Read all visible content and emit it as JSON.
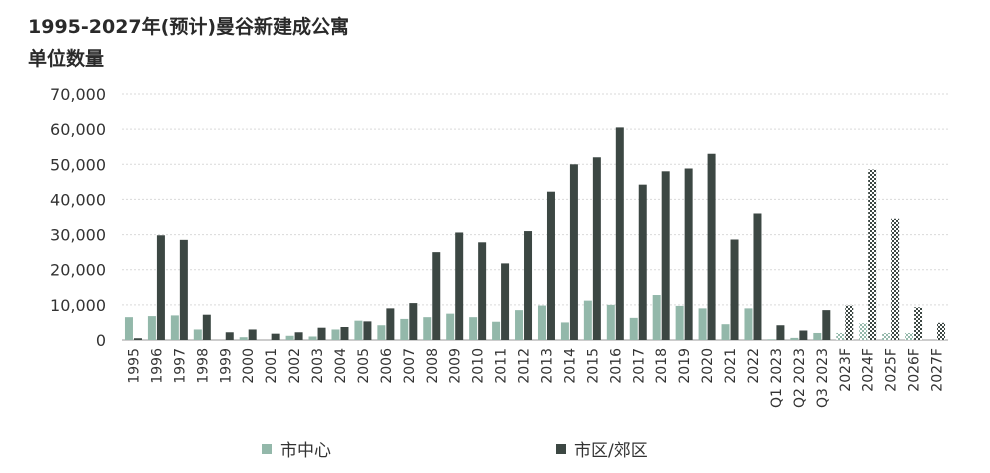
{
  "title": "1995-2027年(预计)曼谷新建成公寓",
  "unit_label": "单位数量",
  "legend": [
    {
      "label": "市中心",
      "color": "#93b8aa"
    },
    {
      "label": "市区/郊区",
      "color": "#3c4743"
    }
  ],
  "chart_data": {
    "type": "bar",
    "title": "1995-2027年(预计)曼谷新建成公寓",
    "ylabel": "单位数量",
    "ylim": [
      0,
      70000
    ],
    "yticks": [
      "0",
      "10,000",
      "20,000",
      "30,000",
      "40,000",
      "50,000",
      "60,000",
      "70,000"
    ],
    "grid": true,
    "legend_position": "bottom",
    "categories": [
      "1995",
      "1996",
      "1997",
      "1998",
      "1999",
      "2000",
      "2001",
      "2002",
      "2003",
      "2004",
      "2005",
      "2006",
      "2007",
      "2008",
      "2009",
      "2010",
      "2011",
      "2012",
      "2013",
      "2014",
      "2015",
      "2016",
      "2017",
      "2018",
      "2019",
      "2020",
      "2021",
      "2022",
      "Q1 2023",
      "Q2 2023",
      "Q3 2023",
      "2023F",
      "2024F",
      "2025F",
      "2026F",
      "2027F"
    ],
    "forecast_categories": [
      "2023F",
      "2024F",
      "2025F",
      "2026F",
      "2027F"
    ],
    "series": [
      {
        "name": "市中心",
        "color": "#93b8aa",
        "values": [
          6500,
          6800,
          7000,
          3000,
          0,
          800,
          0,
          1200,
          1000,
          3000,
          5500,
          4200,
          6000,
          6500,
          7500,
          6500,
          5200,
          8500,
          9800,
          5000,
          11200,
          10000,
          6300,
          12800,
          9700,
          9000,
          4500,
          9000,
          200,
          600,
          2000,
          2000,
          4800,
          2000,
          2000,
          0
        ]
      },
      {
        "name": "市区/郊区",
        "color": "#3c4743",
        "values": [
          500,
          29800,
          28500,
          7200,
          2200,
          3000,
          1800,
          2200,
          3500,
          3700,
          5300,
          9000,
          10500,
          25000,
          30600,
          27800,
          21800,
          31000,
          42200,
          50000,
          52000,
          60500,
          44200,
          48000,
          48800,
          53000,
          28600,
          36000,
          4200,
          2700,
          8500,
          9800,
          48500,
          34500,
          9300,
          4900
        ]
      }
    ]
  }
}
